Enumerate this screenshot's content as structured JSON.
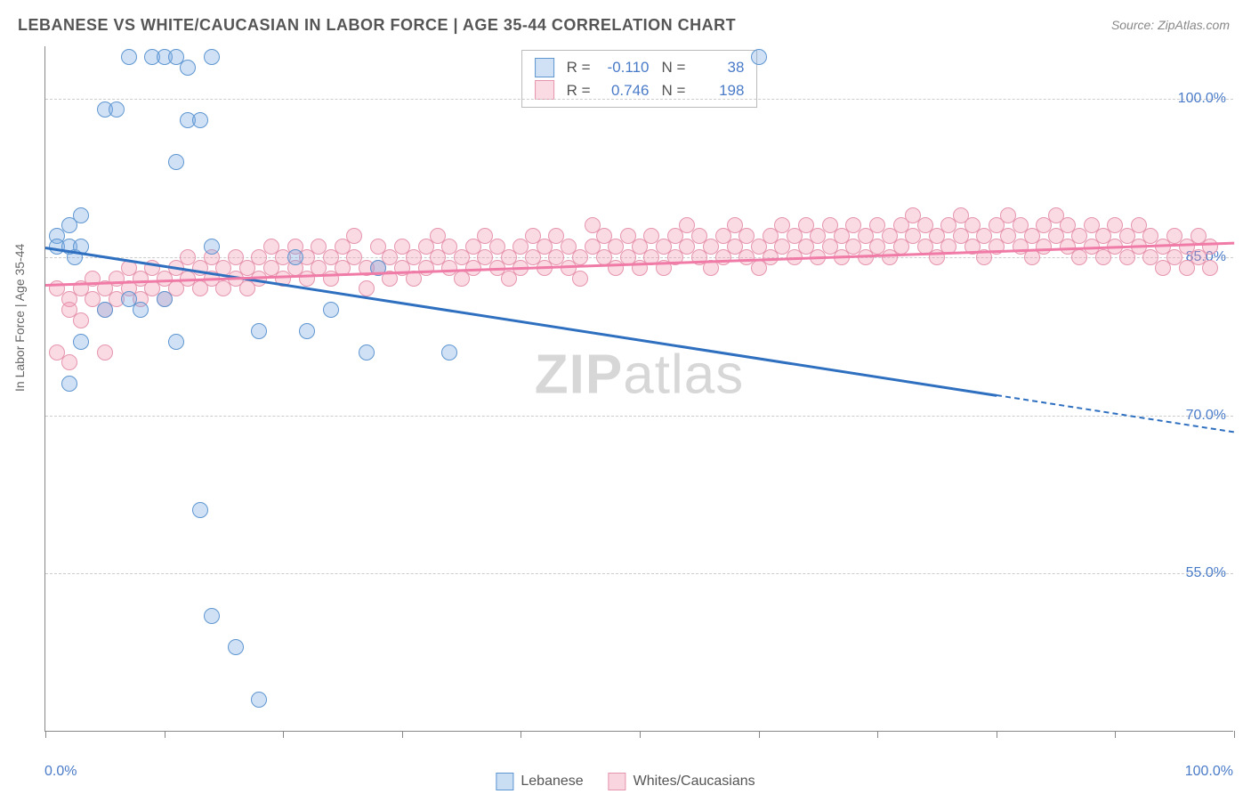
{
  "title": "LEBANESE VS WHITE/CAUCASIAN IN LABOR FORCE | AGE 35-44 CORRELATION CHART",
  "source": "Source: ZipAtlas.com",
  "ylabel": "In Labor Force | Age 35-44",
  "watermark_bold": "ZIP",
  "watermark_light": "atlas",
  "chart": {
    "type": "scatter",
    "background": "#ffffff",
    "grid_color": "#cccccc",
    "axis_color": "#888888",
    "label_color": "#4a7bc8",
    "xlim": [
      0,
      100
    ],
    "ylim": [
      40,
      105
    ],
    "yticks": [
      55.0,
      70.0,
      85.0,
      100.0
    ],
    "ytick_labels": [
      "55.0%",
      "70.0%",
      "85.0%",
      "100.0%"
    ],
    "xticks": [
      0,
      10,
      20,
      30,
      40,
      50,
      60,
      70,
      80,
      90,
      100
    ],
    "xaxis_end_labels": {
      "left": "0.0%",
      "right": "100.0%"
    },
    "marker_radius": 9,
    "marker_stroke_width": 1.5,
    "series": [
      {
        "name": "Lebanese",
        "color_fill": "rgba(120,170,225,0.35)",
        "color_stroke": "#5e96d1",
        "trend_color": "#2e6fc0",
        "R": "-0.110",
        "N": "38",
        "trend": {
          "x1": 0,
          "y1": 86,
          "x2_solid": 80,
          "y2_solid": 72,
          "x2_dash": 100,
          "y2_dash": 68.5
        },
        "points": [
          [
            1,
            87
          ],
          [
            1,
            86
          ],
          [
            2,
            88
          ],
          [
            2,
            86
          ],
          [
            2.5,
            85
          ],
          [
            3,
            89
          ],
          [
            3,
            86
          ],
          [
            2,
            73
          ],
          [
            3,
            77
          ],
          [
            5,
            99
          ],
          [
            6,
            99
          ],
          [
            7,
            104
          ],
          [
            9,
            104
          ],
          [
            10,
            104
          ],
          [
            11,
            104
          ],
          [
            12,
            103
          ],
          [
            14,
            104
          ],
          [
            11,
            94
          ],
          [
            12,
            98
          ],
          [
            13,
            98
          ],
          [
            5,
            80
          ],
          [
            7,
            81
          ],
          [
            8,
            80
          ],
          [
            10,
            81
          ],
          [
            14,
            86
          ],
          [
            11,
            77
          ],
          [
            18,
            78
          ],
          [
            22,
            78
          ],
          [
            13,
            61
          ],
          [
            14,
            51
          ],
          [
            16,
            48
          ],
          [
            18,
            43
          ],
          [
            21,
            85
          ],
          [
            24,
            80
          ],
          [
            27,
            76
          ],
          [
            28,
            84
          ],
          [
            34,
            76
          ],
          [
            60,
            104
          ]
        ]
      },
      {
        "name": "Whites/Caucasians",
        "color_fill": "rgba(240,150,175,0.35)",
        "color_stroke": "#e695ae",
        "trend_color": "#ef7ba6",
        "R": "0.746",
        "N": "198",
        "trend": {
          "x1": 0,
          "y1": 82.5,
          "x2_solid": 100,
          "y2_solid": 86.5,
          "x2_dash": 100,
          "y2_dash": 86.5
        },
        "points": [
          [
            1,
            82
          ],
          [
            2,
            81
          ],
          [
            2,
            80
          ],
          [
            3,
            82
          ],
          [
            3,
            79
          ],
          [
            4,
            83
          ],
          [
            4,
            81
          ],
          [
            5,
            82
          ],
          [
            5,
            80
          ],
          [
            5,
            76
          ],
          [
            6,
            83
          ],
          [
            6,
            81
          ],
          [
            7,
            84
          ],
          [
            7,
            82
          ],
          [
            8,
            83
          ],
          [
            8,
            81
          ],
          [
            9,
            84
          ],
          [
            9,
            82
          ],
          [
            10,
            83
          ],
          [
            10,
            81
          ],
          [
            11,
            84
          ],
          [
            11,
            82
          ],
          [
            12,
            85
          ],
          [
            12,
            83
          ],
          [
            13,
            84
          ],
          [
            13,
            82
          ],
          [
            14,
            83
          ],
          [
            14,
            85
          ],
          [
            15,
            84
          ],
          [
            15,
            82
          ],
          [
            16,
            85
          ],
          [
            16,
            83
          ],
          [
            17,
            84
          ],
          [
            17,
            82
          ],
          [
            18,
            85
          ],
          [
            18,
            83
          ],
          [
            19,
            84
          ],
          [
            19,
            86
          ],
          [
            20,
            85
          ],
          [
            20,
            83
          ],
          [
            21,
            84
          ],
          [
            21,
            86
          ],
          [
            22,
            85
          ],
          [
            22,
            83
          ],
          [
            23,
            86
          ],
          [
            23,
            84
          ],
          [
            24,
            85
          ],
          [
            24,
            83
          ],
          [
            25,
            86
          ],
          [
            25,
            84
          ],
          [
            26,
            85
          ],
          [
            26,
            87
          ],
          [
            27,
            84
          ],
          [
            27,
            82
          ],
          [
            28,
            86
          ],
          [
            28,
            84
          ],
          [
            29,
            85
          ],
          [
            29,
            83
          ],
          [
            30,
            86
          ],
          [
            30,
            84
          ],
          [
            31,
            85
          ],
          [
            31,
            83
          ],
          [
            32,
            86
          ],
          [
            32,
            84
          ],
          [
            33,
            85
          ],
          [
            33,
            87
          ],
          [
            34,
            86
          ],
          [
            34,
            84
          ],
          [
            35,
            85
          ],
          [
            35,
            83
          ],
          [
            36,
            86
          ],
          [
            36,
            84
          ],
          [
            37,
            85
          ],
          [
            37,
            87
          ],
          [
            38,
            86
          ],
          [
            38,
            84
          ],
          [
            39,
            85
          ],
          [
            39,
            83
          ],
          [
            40,
            86
          ],
          [
            40,
            84
          ],
          [
            41,
            85
          ],
          [
            41,
            87
          ],
          [
            42,
            86
          ],
          [
            42,
            84
          ],
          [
            43,
            85
          ],
          [
            43,
            87
          ],
          [
            44,
            86
          ],
          [
            44,
            84
          ],
          [
            45,
            85
          ],
          [
            45,
            83
          ],
          [
            46,
            86
          ],
          [
            46,
            88
          ],
          [
            47,
            85
          ],
          [
            47,
            87
          ],
          [
            48,
            86
          ],
          [
            48,
            84
          ],
          [
            49,
            85
          ],
          [
            49,
            87
          ],
          [
            50,
            86
          ],
          [
            50,
            84
          ],
          [
            51,
            85
          ],
          [
            51,
            87
          ],
          [
            52,
            86
          ],
          [
            52,
            84
          ],
          [
            53,
            87
          ],
          [
            53,
            85
          ],
          [
            54,
            86
          ],
          [
            54,
            88
          ],
          [
            55,
            85
          ],
          [
            55,
            87
          ],
          [
            56,
            86
          ],
          [
            56,
            84
          ],
          [
            57,
            87
          ],
          [
            57,
            85
          ],
          [
            58,
            86
          ],
          [
            58,
            88
          ],
          [
            59,
            87
          ],
          [
            59,
            85
          ],
          [
            60,
            86
          ],
          [
            60,
            84
          ],
          [
            61,
            87
          ],
          [
            61,
            85
          ],
          [
            62,
            86
          ],
          [
            62,
            88
          ],
          [
            63,
            87
          ],
          [
            63,
            85
          ],
          [
            64,
            86
          ],
          [
            64,
            88
          ],
          [
            65,
            87
          ],
          [
            65,
            85
          ],
          [
            66,
            86
          ],
          [
            66,
            88
          ],
          [
            67,
            87
          ],
          [
            67,
            85
          ],
          [
            68,
            86
          ],
          [
            68,
            88
          ],
          [
            69,
            87
          ],
          [
            69,
            85
          ],
          [
            70,
            88
          ],
          [
            70,
            86
          ],
          [
            71,
            87
          ],
          [
            71,
            85
          ],
          [
            72,
            88
          ],
          [
            72,
            86
          ],
          [
            73,
            87
          ],
          [
            73,
            89
          ],
          [
            74,
            88
          ],
          [
            74,
            86
          ],
          [
            75,
            87
          ],
          [
            75,
            85
          ],
          [
            76,
            88
          ],
          [
            76,
            86
          ],
          [
            77,
            87
          ],
          [
            77,
            89
          ],
          [
            78,
            88
          ],
          [
            78,
            86
          ],
          [
            79,
            87
          ],
          [
            79,
            85
          ],
          [
            80,
            88
          ],
          [
            80,
            86
          ],
          [
            81,
            87
          ],
          [
            81,
            89
          ],
          [
            82,
            88
          ],
          [
            82,
            86
          ],
          [
            83,
            87
          ],
          [
            83,
            85
          ],
          [
            84,
            88
          ],
          [
            84,
            86
          ],
          [
            85,
            87
          ],
          [
            85,
            89
          ],
          [
            86,
            88
          ],
          [
            86,
            86
          ],
          [
            87,
            87
          ],
          [
            87,
            85
          ],
          [
            88,
            88
          ],
          [
            88,
            86
          ],
          [
            89,
            87
          ],
          [
            89,
            85
          ],
          [
            90,
            88
          ],
          [
            90,
            86
          ],
          [
            91,
            87
          ],
          [
            91,
            85
          ],
          [
            92,
            86
          ],
          [
            92,
            88
          ],
          [
            93,
            87
          ],
          [
            93,
            85
          ],
          [
            94,
            86
          ],
          [
            94,
            84
          ],
          [
            95,
            87
          ],
          [
            95,
            85
          ],
          [
            96,
            86
          ],
          [
            96,
            84
          ],
          [
            97,
            85
          ],
          [
            97,
            87
          ],
          [
            98,
            86
          ],
          [
            98,
            84
          ],
          [
            1,
            76
          ],
          [
            2,
            75
          ]
        ]
      }
    ]
  },
  "bottom_legend": [
    {
      "label": "Lebanese",
      "fill": "rgba(120,170,225,0.4)",
      "stroke": "#5e96d1"
    },
    {
      "label": "Whites/Caucasians",
      "fill": "rgba(240,150,175,0.4)",
      "stroke": "#e695ae"
    }
  ]
}
